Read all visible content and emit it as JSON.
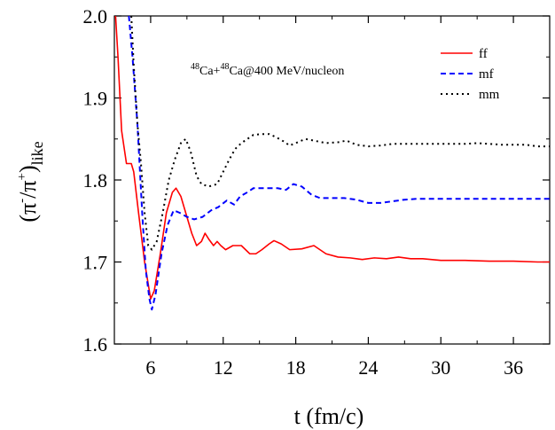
{
  "chart_data": {
    "type": "line",
    "xlabel": "t (fm/c)",
    "ylabel": {
      "base": "(π",
      "sup1": "-",
      "mid": "/π",
      "sup2": "+",
      "close": ")",
      "sub": "like"
    },
    "annotation": {
      "sup1": "48",
      "t1": "Ca+",
      "sup2": "48",
      "t2": "Ca@400 MeV/nucleon"
    },
    "xlim": [
      3,
      39
    ],
    "ylim": [
      1.6,
      2.0
    ],
    "xticks": [
      6,
      12,
      18,
      24,
      30,
      36
    ],
    "yticks": [
      1.6,
      1.7,
      1.8,
      1.9,
      2.0
    ],
    "ytick_labels": [
      "1.6",
      "1.7",
      "1.8",
      "1.9",
      "2.0"
    ],
    "legend_position": "top-right",
    "series": [
      {
        "name": "ff",
        "color": "#ff0000",
        "dash": "solid",
        "points": [
          [
            3.1,
            2.0
          ],
          [
            3.3,
            1.95
          ],
          [
            3.6,
            1.86
          ],
          [
            4.0,
            1.82
          ],
          [
            4.4,
            1.82
          ],
          [
            4.6,
            1.81
          ],
          [
            5.0,
            1.76
          ],
          [
            5.5,
            1.7
          ],
          [
            6.0,
            1.655
          ],
          [
            6.3,
            1.665
          ],
          [
            6.8,
            1.71
          ],
          [
            7.3,
            1.76
          ],
          [
            7.8,
            1.785
          ],
          [
            8.1,
            1.79
          ],
          [
            8.5,
            1.78
          ],
          [
            9.0,
            1.755
          ],
          [
            9.4,
            1.735
          ],
          [
            9.8,
            1.72
          ],
          [
            10.2,
            1.725
          ],
          [
            10.5,
            1.735
          ],
          [
            10.8,
            1.728
          ],
          [
            11.2,
            1.72
          ],
          [
            11.5,
            1.725
          ],
          [
            11.8,
            1.72
          ],
          [
            12.2,
            1.715
          ],
          [
            12.8,
            1.72
          ],
          [
            13.5,
            1.72
          ],
          [
            14.2,
            1.71
          ],
          [
            14.7,
            1.71
          ],
          [
            15.2,
            1.715
          ],
          [
            15.8,
            1.722
          ],
          [
            16.2,
            1.726
          ],
          [
            16.8,
            1.722
          ],
          [
            17.5,
            1.715
          ],
          [
            18.5,
            1.716
          ],
          [
            19.5,
            1.72
          ],
          [
            20.5,
            1.71
          ],
          [
            21.5,
            1.706
          ],
          [
            22.5,
            1.705
          ],
          [
            23.5,
            1.703
          ],
          [
            24.5,
            1.705
          ],
          [
            25.5,
            1.704
          ],
          [
            26.5,
            1.706
          ],
          [
            27.5,
            1.704
          ],
          [
            28.5,
            1.704
          ],
          [
            30,
            1.702
          ],
          [
            32,
            1.702
          ],
          [
            34,
            1.701
          ],
          [
            36,
            1.701
          ],
          [
            38,
            1.7
          ],
          [
            39,
            1.7
          ]
        ]
      },
      {
        "name": "mf",
        "color": "#0000ff",
        "dash": "dashed",
        "points": [
          [
            4.2,
            2.0
          ],
          [
            4.5,
            1.95
          ],
          [
            4.9,
            1.87
          ],
          [
            5.3,
            1.76
          ],
          [
            5.6,
            1.69
          ],
          [
            5.9,
            1.655
          ],
          [
            6.1,
            1.642
          ],
          [
            6.4,
            1.66
          ],
          [
            6.9,
            1.71
          ],
          [
            7.4,
            1.745
          ],
          [
            7.9,
            1.763
          ],
          [
            8.4,
            1.76
          ],
          [
            9.0,
            1.755
          ],
          [
            9.6,
            1.752
          ],
          [
            10.3,
            1.755
          ],
          [
            11.0,
            1.763
          ],
          [
            11.6,
            1.767
          ],
          [
            12.3,
            1.775
          ],
          [
            12.9,
            1.77
          ],
          [
            13.4,
            1.78
          ],
          [
            14.0,
            1.785
          ],
          [
            14.5,
            1.79
          ],
          [
            15.5,
            1.79
          ],
          [
            16.5,
            1.79
          ],
          [
            17.2,
            1.788
          ],
          [
            17.8,
            1.795
          ],
          [
            18.5,
            1.792
          ],
          [
            19.3,
            1.782
          ],
          [
            20.0,
            1.778
          ],
          [
            21.0,
            1.778
          ],
          [
            22.0,
            1.778
          ],
          [
            23.0,
            1.776
          ],
          [
            24.0,
            1.772
          ],
          [
            25.0,
            1.772
          ],
          [
            26.0,
            1.774
          ],
          [
            27.0,
            1.776
          ],
          [
            28.0,
            1.777
          ],
          [
            30,
            1.777
          ],
          [
            32,
            1.777
          ],
          [
            34,
            1.777
          ],
          [
            36,
            1.777
          ],
          [
            38,
            1.777
          ],
          [
            39,
            1.777
          ]
        ]
      },
      {
        "name": "mm",
        "color": "#000000",
        "dash": "dotted",
        "points": [
          [
            4.4,
            2.0
          ],
          [
            4.6,
            1.94
          ],
          [
            4.9,
            1.87
          ],
          [
            5.2,
            1.82
          ],
          [
            5.5,
            1.76
          ],
          [
            5.8,
            1.72
          ],
          [
            6.1,
            1.715
          ],
          [
            6.5,
            1.725
          ],
          [
            7.0,
            1.76
          ],
          [
            7.5,
            1.8
          ],
          [
            8.0,
            1.825
          ],
          [
            8.5,
            1.845
          ],
          [
            8.9,
            1.85
          ],
          [
            9.3,
            1.835
          ],
          [
            9.8,
            1.805
          ],
          [
            10.2,
            1.795
          ],
          [
            10.8,
            1.792
          ],
          [
            11.5,
            1.795
          ],
          [
            12.0,
            1.81
          ],
          [
            12.5,
            1.825
          ],
          [
            13.0,
            1.838
          ],
          [
            13.5,
            1.845
          ],
          [
            14.0,
            1.85
          ],
          [
            14.5,
            1.855
          ],
          [
            15.2,
            1.856
          ],
          [
            15.8,
            1.856
          ],
          [
            16.4,
            1.852
          ],
          [
            17.0,
            1.847
          ],
          [
            17.5,
            1.842
          ],
          [
            18.0,
            1.845
          ],
          [
            18.8,
            1.85
          ],
          [
            19.5,
            1.848
          ],
          [
            20.5,
            1.845
          ],
          [
            21.5,
            1.846
          ],
          [
            22.2,
            1.848
          ],
          [
            23.0,
            1.843
          ],
          [
            24.0,
            1.841
          ],
          [
            25.0,
            1.842
          ],
          [
            26.0,
            1.844
          ],
          [
            27.0,
            1.844
          ],
          [
            28.0,
            1.844
          ],
          [
            30,
            1.844
          ],
          [
            32,
            1.844
          ],
          [
            33,
            1.845
          ],
          [
            34,
            1.844
          ],
          [
            35,
            1.843
          ],
          [
            36,
            1.843
          ],
          [
            37,
            1.843
          ],
          [
            38,
            1.841
          ],
          [
            39,
            1.841
          ]
        ]
      }
    ]
  }
}
